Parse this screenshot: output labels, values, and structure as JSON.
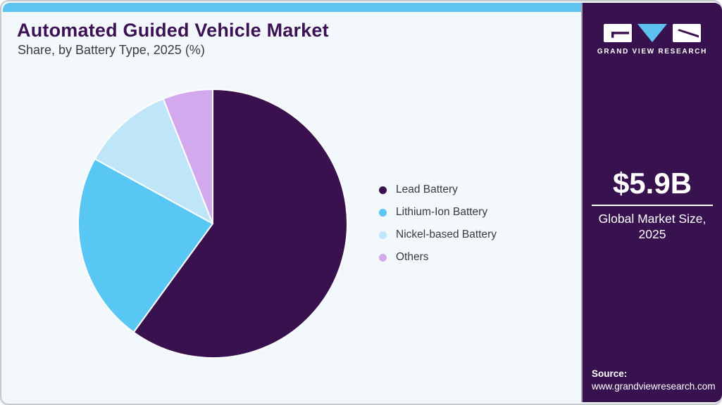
{
  "header": {
    "title": "Automated Guided Vehicle Market",
    "subtitle": "Share, by Battery Type, 2025 (%)"
  },
  "chart_data": {
    "type": "pie",
    "title": "Automated Guided Vehicle Market Share, by Battery Type, 2025 (%)",
    "unit": "%",
    "direction": "clockwise",
    "start_angle_deg": 0,
    "labels_shown": false,
    "legend_position": "right",
    "slices": [
      {
        "label": "Lead Battery",
        "value": 60,
        "color": "#39114F"
      },
      {
        "label": "Lithium-Ion Battery",
        "value": 23,
        "color": "#59C7F3"
      },
      {
        "label": "Nickel-based Battery",
        "value": 11,
        "color": "#BFE5F8"
      },
      {
        "label": "Others",
        "value": 6,
        "color": "#D2A9ED"
      }
    ]
  },
  "sidebar": {
    "brand_name": "GRAND VIEW RESEARCH",
    "market_size_value": "$5.9B",
    "market_size_label_line1": "Global Market Size,",
    "market_size_label_line2": "2025",
    "source_label": "Source:",
    "source_url": "www.grandviewresearch.com",
    "background": "#38124E"
  },
  "theme": {
    "accent_bar_color": "#5FC5F0",
    "canvas_background": "#F2F8FB",
    "title_color": "#3D1254",
    "logo_triangle_color": "#5EC1EF"
  }
}
